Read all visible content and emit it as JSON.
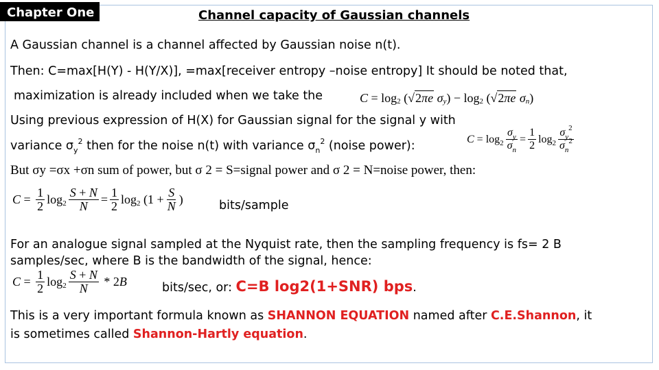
{
  "badge": "Chapter One",
  "title": "Channel capacity of Gaussian channels",
  "lines": {
    "l1": "A Gaussian channel is a channel affected by Gaussian noise n(t).",
    "l2": "Then: C=max[H(Y) - H(Y/X)], =max[receiver entropy –noise entropy]  It should be noted that,",
    "l3": "maximization is already included when we take the",
    "l4": "Using previous expression of H(X) for Gaussian signal for the signal y with",
    "l5a": "variance σ",
    "l5b": "y",
    "l5c": "2",
    "l5d": "  then for the noise n(t) with variance σ",
    "l5e": "n",
    "l5f": "2",
    "l5g": "  (noise power):",
    "l6": "But σy =σx +σn sum of power, but σ 2 = S=signal power and σ 2 = N=noise power, then:",
    "l7_units": "bits/sample",
    "l8": "For an analogue signal sampled at the Nyquist rate, then the sampling  frequency is fs= 2 B",
    "l9": "samples/sec, where B is the bandwidth of the signal,  hence:",
    "l10_pre": "bits/sec, or: ",
    "l10_formula": "C=B log2(1+SNR) bps",
    "l10_post": ".",
    "l11_pre": " This is a very important formula known as  ",
    "l11_red1": "SHANNON EQUATION",
    "l11_mid": " named after ",
    "l11_red2": "C.E.Shannon",
    "l11_post": ", it",
    "l12_pre": "is sometimes called  ",
    "l12_red": "Shannon-Hartly equation",
    "l12_post": "."
  },
  "colors": {
    "accent_red": "#e02020",
    "frame_border": "#a9c3e0",
    "badge_bg": "#000000"
  }
}
